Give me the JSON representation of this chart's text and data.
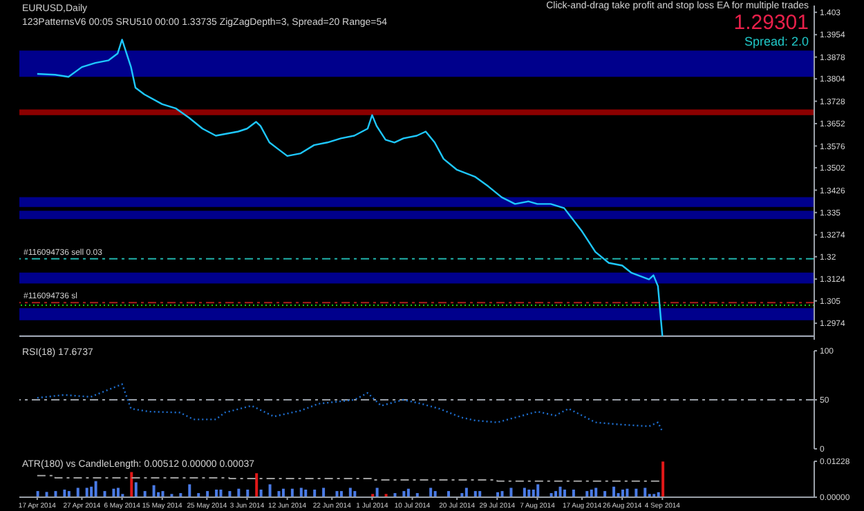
{
  "chart_data": [
    {
      "type": "line",
      "title": "EURUSD,Daily",
      "subtitle": "123PatternsV6  00:05  SRU510  00:00  1.33735  ZigZagDepth=3, Spread=20  Range=54",
      "annotations": [
        "Click-and-drag take profit and stop loss EA for multiple trades",
        "1.29301",
        "Spread: 2.0"
      ],
      "x": [
        "2014-04-17",
        "2014-04-21",
        "2014-04-24",
        "2014-04-27",
        "2014-04-30",
        "2014-05-03",
        "2014-05-05",
        "2014-05-06",
        "2014-05-08",
        "2014-05-09",
        "2014-05-11",
        "2014-05-15",
        "2014-05-18",
        "2014-05-21",
        "2014-05-24",
        "2014-05-27",
        "2014-06-01",
        "2014-06-03",
        "2014-06-05",
        "2014-06-06",
        "2014-06-08",
        "2014-06-10",
        "2014-06-12",
        "2014-06-15",
        "2014-06-18",
        "2014-06-21",
        "2014-06-24",
        "2014-06-27",
        "2014-06-30",
        "2014-07-01",
        "2014-07-02",
        "2014-07-04",
        "2014-07-06",
        "2014-07-08",
        "2014-07-11",
        "2014-07-13",
        "2014-07-15",
        "2014-07-17",
        "2014-07-20",
        "2014-07-24",
        "2014-07-27",
        "2014-07-30",
        "2014-08-02",
        "2014-08-05",
        "2014-08-07",
        "2014-08-10",
        "2014-08-13",
        "2014-08-17",
        "2014-08-20",
        "2014-08-23",
        "2014-08-26",
        "2014-08-28",
        "2014-09-01",
        "2014-09-02",
        "2014-09-03",
        "2014-09-04"
      ],
      "series": [
        {
          "color": "#1ec8ff",
          "values": [
            1.3821,
            1.3818,
            1.3811,
            1.3844,
            1.3858,
            1.3867,
            1.389,
            1.3937,
            1.3844,
            1.3774,
            1.3751,
            1.3718,
            1.3704,
            1.3672,
            1.3635,
            1.3611,
            1.3625,
            1.3635,
            1.3658,
            1.3644,
            1.3588,
            1.3565,
            1.3542,
            1.3551,
            1.3579,
            1.3588,
            1.3602,
            1.3611,
            1.3635,
            1.3681,
            1.3644,
            1.3597,
            1.3588,
            1.3602,
            1.3611,
            1.3625,
            1.3588,
            1.3532,
            1.3495,
            1.3472,
            1.3439,
            1.3402,
            1.3379,
            1.3388,
            1.3379,
            1.3379,
            1.3365,
            1.3286,
            1.3216,
            1.3179,
            1.317,
            1.3146,
            1.3123,
            1.3137,
            1.31,
            1.29301
          ]
        }
      ],
      "xlim": [
        "2014-04-13",
        "2014-10-08"
      ],
      "ylim": [
        1.2918,
        1.4053
      ],
      "yticks": [
        1.2974,
        1.305,
        1.3124,
        1.32,
        1.3274,
        1.335,
        1.3426,
        1.3502,
        1.3576,
        1.3652,
        1.3728,
        1.3804,
        1.3878,
        1.3954,
        1.403
      ],
      "bands": [
        {
          "axis": "y",
          "from": 1.3811,
          "to": 1.39,
          "color": "#00008c"
        },
        {
          "axis": "y",
          "from": 1.3681,
          "to": 1.37,
          "color": "#8c0000"
        },
        {
          "axis": "y",
          "from": 1.3369,
          "to": 1.3402,
          "color": "#00008c"
        },
        {
          "axis": "y",
          "from": 1.3328,
          "to": 1.3356,
          "color": "#00008c"
        },
        {
          "axis": "y",
          "from": 1.3109,
          "to": 1.3146,
          "color": "#00008c"
        },
        {
          "axis": "y",
          "from": 1.2984,
          "to": 1.3025,
          "color": "#00008c"
        }
      ],
      "ref_lines": [
        {
          "axis": "y",
          "value": 1.3193,
          "label": "#116094736 sell 0.03",
          "color": "#20b2aa",
          "line_style": "dashed"
        },
        {
          "axis": "y",
          "value": 1.3044,
          "label": "#116094736 sl",
          "color": "#b01c1c",
          "line_style": "dashed"
        },
        {
          "axis": "y",
          "value": 1.3035,
          "label": null,
          "color": "#18c818",
          "line_style": "dotted"
        },
        {
          "axis": "y",
          "value": 1.29301,
          "label": null,
          "color": "#b0b8c8",
          "line_style": "solid"
        }
      ],
      "tick_labels": "y"
    },
    {
      "type": "line",
      "title": "RSI(18) 17.6737",
      "x": [
        "2014-04-17",
        "2014-04-23",
        "2014-04-29",
        "2014-05-06",
        "2014-05-08",
        "2014-05-12",
        "2014-05-19",
        "2014-05-22",
        "2014-05-27",
        "2014-05-29",
        "2014-06-04",
        "2014-06-09",
        "2014-06-15",
        "2014-06-19",
        "2014-06-27",
        "2014-06-30",
        "2014-07-03",
        "2014-07-08",
        "2014-07-12",
        "2014-07-16",
        "2014-07-21",
        "2014-07-24",
        "2014-07-29",
        "2014-08-07",
        "2014-08-11",
        "2014-08-14",
        "2014-08-20",
        "2014-08-25",
        "2014-09-01",
        "2014-09-03",
        "2014-09-04"
      ],
      "series": [
        {
          "color": "#1e6fd0",
          "values": [
            52,
            55,
            53,
            66,
            41,
            38,
            37,
            30,
            30,
            37,
            44,
            33,
            39,
            46,
            50,
            57,
            44,
            50,
            46,
            41,
            32,
            29,
            27,
            38,
            34,
            41,
            27,
            25,
            23,
            27,
            17.6737
          ]
        }
      ],
      "line_style": "dotted",
      "xlim": [
        "2014-04-13",
        "2014-10-08"
      ],
      "ylim": [
        0,
        100
      ],
      "yticks": [
        0,
        50,
        100
      ],
      "ref_lines": [
        {
          "axis": "y",
          "value": 50,
          "label": null,
          "color": "#9aa0a8",
          "line_style": "dashed"
        }
      ],
      "tick_labels": "y"
    },
    {
      "type": "bar",
      "title": "ATR(180) vs CandleLength: 0.00512 0.00000 0.00037",
      "series": [
        {
          "x": [
            "2014-04-17",
            "2014-04-19",
            "2014-04-21",
            "2014-04-23",
            "2014-04-24",
            "2014-04-26",
            "2014-04-28",
            "2014-04-29",
            "2014-04-30",
            "2014-05-02",
            "2014-05-04",
            "2014-05-05",
            "2014-05-06",
            "2014-05-08",
            "2014-05-09",
            "2014-05-11",
            "2014-05-13",
            "2014-05-14",
            "2014-05-15",
            "2014-05-17",
            "2014-05-19",
            "2014-05-21",
            "2014-05-23",
            "2014-05-25",
            "2014-05-27",
            "2014-05-28",
            "2014-05-30",
            "2014-06-01",
            "2014-06-03",
            "2014-06-05",
            "2014-06-06",
            "2014-06-08",
            "2014-06-10",
            "2014-06-11",
            "2014-06-13",
            "2014-06-15",
            "2014-06-16",
            "2014-06-18",
            "2014-06-20",
            "2014-06-23",
            "2014-06-24",
            "2014-06-26",
            "2014-06-27",
            "2014-07-01",
            "2014-07-02",
            "2014-07-04",
            "2014-07-06",
            "2014-07-08",
            "2014-07-09",
            "2014-07-11",
            "2014-07-14",
            "2014-07-15",
            "2014-07-18",
            "2014-07-21",
            "2014-07-22",
            "2014-07-24",
            "2014-07-25",
            "2014-07-29",
            "2014-07-30",
            "2014-08-01",
            "2014-08-04",
            "2014-08-05",
            "2014-08-06",
            "2014-08-07",
            "2014-08-10",
            "2014-08-11",
            "2014-08-12",
            "2014-08-13",
            "2014-08-15",
            "2014-08-18",
            "2014-08-19",
            "2014-08-20",
            "2014-08-22",
            "2014-08-24",
            "2014-08-25",
            "2014-08-26",
            "2014-08-27",
            "2014-08-29",
            "2014-08-31",
            "2014-09-01",
            "2014-09-02",
            "2014-09-03",
            "2014-09-04"
          ],
          "values": [
            0.0021,
            0.0018,
            0.0021,
            0.0026,
            0.0021,
            0.0032,
            0.0032,
            0.0036,
            0.0055,
            0.0021,
            0.0029,
            0.0032,
            0.0011,
            0.0086,
            0.0051,
            0.0021,
            0.0041,
            0.0017,
            0.0021,
            0.0011,
            0.0014,
            0.0044,
            0.0014,
            0.0021,
            0.0026,
            0.0026,
            0.0021,
            0.0029,
            0.0026,
            0.0082,
            0.0026,
            0.0044,
            0.0021,
            0.0029,
            0.0029,
            0.0032,
            0.0026,
            0.0026,
            0.0032,
            0.0021,
            0.0021,
            0.0032,
            0.0021,
            0.0011,
            0.0032,
            0.0011,
            0.0014,
            0.0021,
            0.0029,
            0.0014,
            0.0032,
            0.0021,
            0.0021,
            0.0014,
            0.0032,
            0.0021,
            0.0021,
            0.0017,
            0.0021,
            0.0032,
            0.0032,
            0.0026,
            0.0026,
            0.0044,
            0.0014,
            0.0021,
            0.0036,
            0.0026,
            0.0026,
            0.0021,
            0.0026,
            0.0032,
            0.0021,
            0.0036,
            0.0014,
            0.0026,
            0.0029,
            0.0029,
            0.0032,
            0.0011,
            0.0011,
            0.0017,
            0.0122
          ],
          "colors": [
            "#4a7be6",
            "#4a7be6",
            "#4a7be6",
            "#4a7be6",
            "#4a7be6",
            "#4a7be6",
            "#4a7be6",
            "#4a7be6",
            "#4a7be6",
            "#4a7be6",
            "#4a7be6",
            "#4a7be6",
            "#4a7be6",
            "#e01818",
            "#4a7be6",
            "#4a7be6",
            "#4a7be6",
            "#4a7be6",
            "#4a7be6",
            "#4a7be6",
            "#4a7be6",
            "#4a7be6",
            "#4a7be6",
            "#4a7be6",
            "#4a7be6",
            "#4a7be6",
            "#4a7be6",
            "#4a7be6",
            "#4a7be6",
            "#e01818",
            "#4a7be6",
            "#4a7be6",
            "#4a7be6",
            "#4a7be6",
            "#4a7be6",
            "#4a7be6",
            "#4a7be6",
            "#4a7be6",
            "#4a7be6",
            "#4a7be6",
            "#4a7be6",
            "#4a7be6",
            "#4a7be6",
            "#e01818",
            "#4a7be6",
            "#e01818",
            "#4a7be6",
            "#4a7be6",
            "#4a7be6",
            "#4a7be6",
            "#4a7be6",
            "#4a7be6",
            "#4a7be6",
            "#4a7be6",
            "#4a7be6",
            "#4a7be6",
            "#4a7be6",
            "#4a7be6",
            "#4a7be6",
            "#4a7be6",
            "#4a7be6",
            "#4a7be6",
            "#4a7be6",
            "#4a7be6",
            "#4a7be6",
            "#4a7be6",
            "#4a7be6",
            "#4a7be6",
            "#4a7be6",
            "#4a7be6",
            "#4a7be6",
            "#4a7be6",
            "#4a7be6",
            "#4a7be6",
            "#4a7be6",
            "#4a7be6",
            "#4a7be6",
            "#4a7be6",
            "#4a7be6",
            "#4a7be6",
            "#4a7be6",
            "#4a7be6",
            "#e01818"
          ]
        },
        {
          "type": "step",
          "x": [
            "2014-04-17",
            "2014-04-21",
            "2014-05-30",
            "2014-07-01",
            "2014-07-29",
            "2014-09-04"
          ],
          "color": "#a0a0a0",
          "line_style": "dashed",
          "values": [
            0.0074,
            0.0066,
            0.0064,
            0.0059,
            0.0055,
            0.0055
          ]
        }
      ],
      "xlim": [
        "2014-04-13",
        "2014-10-08"
      ],
      "ylim": [
        0,
        0.01228
      ],
      "yticks": [
        {
          "value": 0,
          "label": "0.00000"
        },
        0.01228
      ],
      "xticks": [
        {
          "value": "2014-04-17",
          "label": "17 Apr 2014"
        },
        {
          "value": "2014-04-27",
          "label": "27 Apr 2014"
        },
        {
          "value": "2014-05-06",
          "label": "6 May 2014"
        },
        {
          "value": "2014-05-15",
          "label": "15 May 2014"
        },
        {
          "value": "2014-05-25",
          "label": "25 May 2014"
        },
        {
          "value": "2014-06-03",
          "label": "3 Jun 2014"
        },
        {
          "value": "2014-06-12",
          "label": "12 Jun 2014"
        },
        {
          "value": "2014-06-22",
          "label": "22 Jun 2014"
        },
        {
          "value": "2014-07-01",
          "label": "1 Jul 2014"
        },
        {
          "value": "2014-07-10",
          "label": "10 Jul 2014"
        },
        {
          "value": "2014-07-20",
          "label": "20 Jul 2014"
        },
        {
          "value": "2014-07-29",
          "label": "29 Jul 2014"
        },
        {
          "value": "2014-08-07",
          "label": "7 Aug 2014"
        },
        {
          "value": "2014-08-17",
          "label": "17 Aug 2014"
        },
        {
          "value": "2014-08-26",
          "label": "26 Aug 2014"
        },
        {
          "value": "2014-09-04",
          "label": "4 Sep 2014"
        }
      ]
    }
  ]
}
